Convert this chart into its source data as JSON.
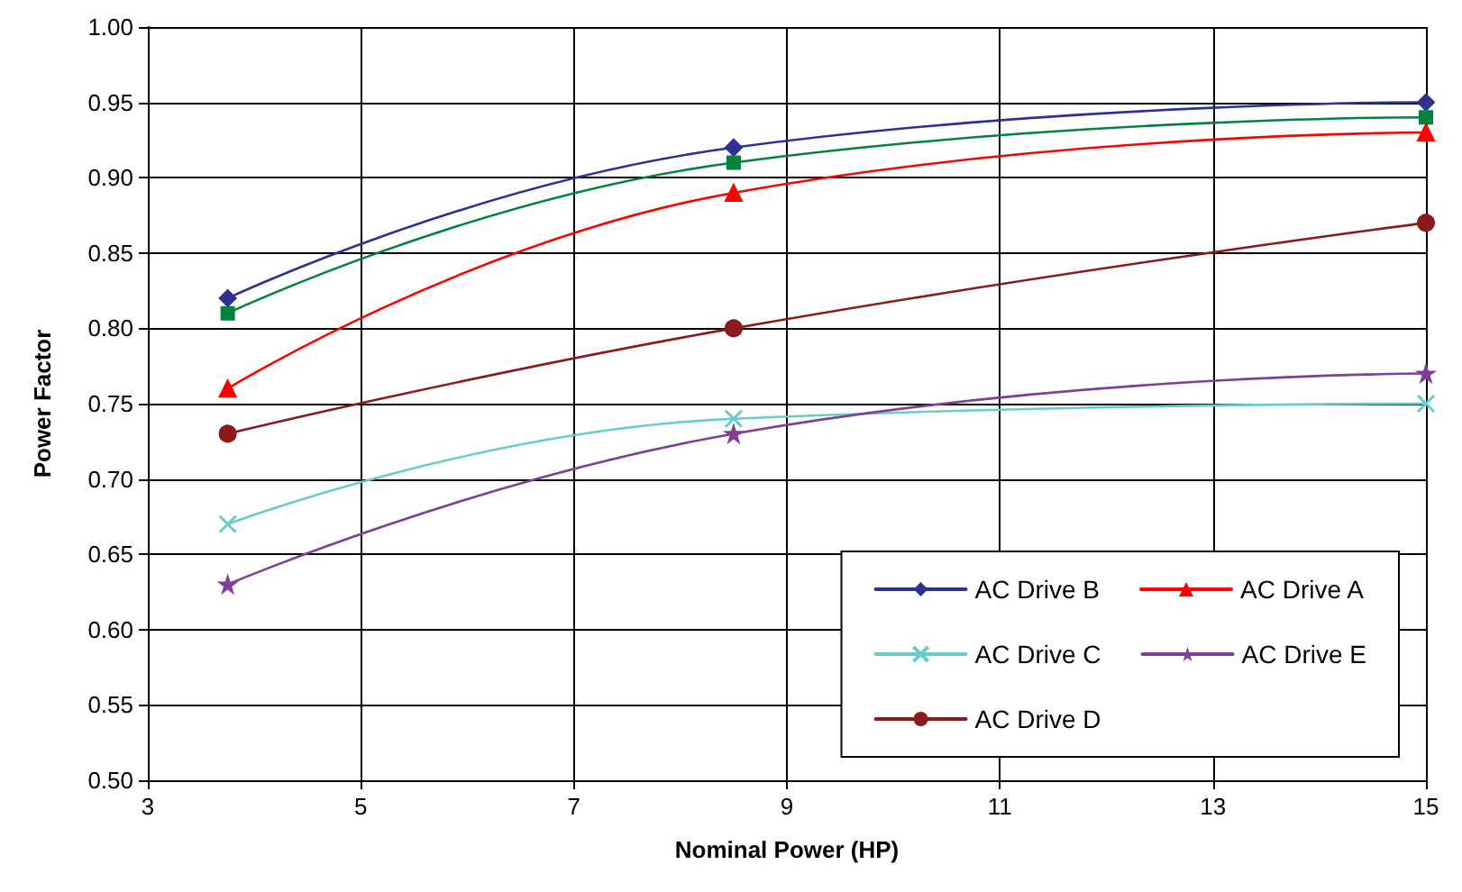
{
  "chart_data": {
    "type": "line",
    "xlabel": "Nominal Power (HP)",
    "ylabel": "Power Factor",
    "x": [
      3.75,
      8.5,
      15
    ],
    "series": [
      {
        "name": "AC Drive B",
        "color": "#2e3192",
        "marker": "diamond",
        "values": [
          0.82,
          0.92,
          0.95
        ]
      },
      {
        "color": "#00843d",
        "marker": "square",
        "values": [
          0.81,
          0.91,
          0.94
        ]
      },
      {
        "name": "AC Drive A",
        "color": "#ff0000",
        "marker": "triangle",
        "values": [
          0.76,
          0.89,
          0.93
        ]
      },
      {
        "name": "AC Drive C",
        "color": "#66cccc",
        "marker": "cross",
        "values": [
          0.67,
          0.74,
          0.75
        ]
      },
      {
        "name": "AC Drive E",
        "color": "#7f3f98",
        "marker": "star",
        "values": [
          0.63,
          0.73,
          0.77
        ]
      },
      {
        "name": "AC Drive D",
        "color": "#8b1a1a",
        "marker": "circle",
        "values": [
          0.73,
          0.8,
          0.87
        ]
      }
    ],
    "xlim": [
      3,
      15
    ],
    "xticks": [
      3,
      5,
      7,
      9,
      11,
      13,
      15
    ],
    "ylim": [
      0.5,
      1
    ],
    "yticks": [
      {
        "value": 0.5,
        "label": "0.50"
      },
      0.55,
      {
        "value": 0.6,
        "label": "0.60"
      },
      0.65,
      {
        "value": 0.7,
        "label": "0.70"
      },
      0.75,
      {
        "value": 0.8,
        "label": "0.80"
      },
      0.85,
      {
        "value": 0.9,
        "label": "0.90"
      },
      0.95,
      {
        "value": 1,
        "label": "1.00"
      }
    ],
    "grid": true,
    "legend": "bottom right"
  }
}
